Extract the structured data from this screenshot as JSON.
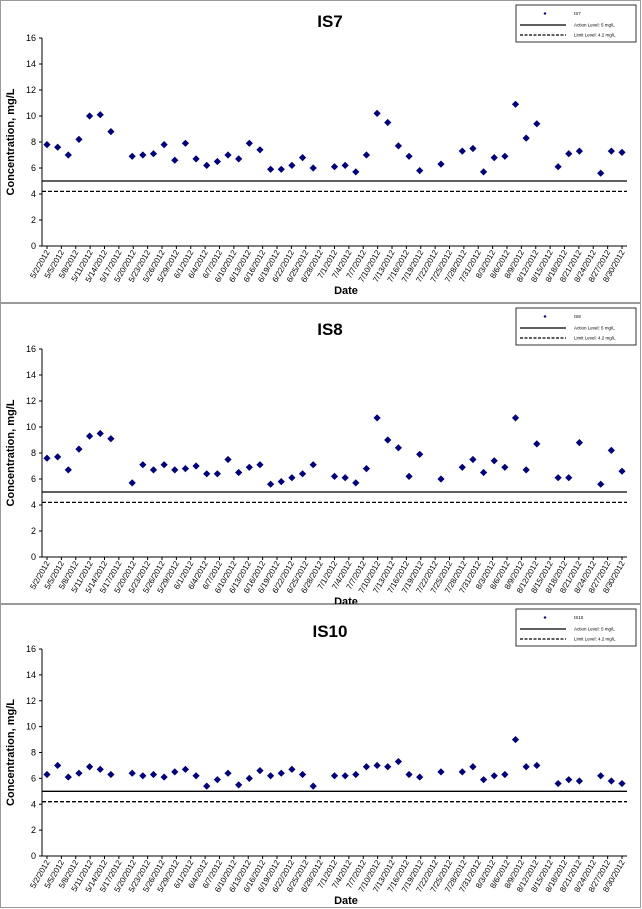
{
  "chart_data": [
    {
      "type": "scatter",
      "title": "IS7",
      "xlabel": "Date",
      "ylabel": "Concentration, mg/L",
      "ylim": [
        0,
        16
      ],
      "yticks": [
        0,
        2,
        4,
        6,
        8,
        10,
        12,
        14,
        16
      ],
      "grid": false,
      "legend_position": "top-right",
      "x_categories": [
        "5/2/2012",
        "5/5/2012",
        "5/8/2012",
        "5/11/2012",
        "5/14/2012",
        "5/17/2012",
        "5/20/2012",
        "5/23/2012",
        "5/26/2012",
        "5/29/2012",
        "6/1/2012",
        "6/4/2012",
        "6/7/2012",
        "6/10/2012",
        "6/13/2012",
        "6/16/2012",
        "6/19/2012",
        "6/22/2012",
        "6/25/2012",
        "6/28/2012",
        "7/1/2012",
        "7/4/2012",
        "7/7/2012",
        "7/10/2012",
        "7/13/2012",
        "7/16/2012",
        "7/19/2012",
        "7/22/2012",
        "7/25/2012",
        "7/28/2012",
        "7/31/2012",
        "8/3/2012",
        "8/6/2012",
        "8/9/2012",
        "8/12/2012",
        "8/15/2012",
        "8/18/2012",
        "8/21/2012",
        "8/24/2012",
        "8/27/2012",
        "8/30/2012"
      ],
      "series": [
        {
          "name": "IS7",
          "values": [
            [
              0,
              7.8
            ],
            [
              1,
              7.6
            ],
            [
              2,
              7.0
            ],
            [
              3,
              8.2
            ],
            [
              4,
              10.0
            ],
            [
              5,
              10.1
            ],
            [
              6,
              8.8
            ],
            [
              8,
              6.9
            ],
            [
              9,
              7.0
            ],
            [
              10,
              7.1
            ],
            [
              11,
              7.8
            ],
            [
              12,
              6.6
            ],
            [
              13,
              7.9
            ],
            [
              14,
              6.7
            ],
            [
              15,
              6.2
            ],
            [
              16,
              6.5
            ],
            [
              17,
              7.0
            ],
            [
              18,
              6.7
            ],
            [
              19,
              7.9
            ],
            [
              20,
              7.4
            ],
            [
              21,
              5.9
            ],
            [
              22,
              5.9
            ],
            [
              23,
              6.2
            ],
            [
              24,
              6.8
            ],
            [
              25,
              6.0
            ],
            [
              27,
              6.1
            ],
            [
              28,
              6.2
            ],
            [
              29,
              5.7
            ],
            [
              30,
              7.0
            ],
            [
              31,
              10.2
            ],
            [
              32,
              9.5
            ],
            [
              33,
              7.7
            ],
            [
              34,
              6.9
            ],
            [
              35,
              5.8
            ],
            [
              37,
              6.3
            ],
            [
              39,
              7.3
            ],
            [
              40,
              7.5
            ],
            [
              41,
              5.7
            ],
            [
              42,
              6.8
            ],
            [
              43,
              6.9
            ],
            [
              44,
              10.9
            ],
            [
              45,
              8.3
            ],
            [
              46,
              9.4
            ],
            [
              48,
              6.1
            ],
            [
              49,
              7.1
            ],
            [
              50,
              7.3
            ],
            [
              52,
              5.6
            ],
            [
              53,
              7.3
            ],
            [
              54,
              7.2
            ]
          ]
        }
      ],
      "reference_lines": [
        {
          "name": "Action Level: 5 mg/L",
          "value": 5.0,
          "style": "solid"
        },
        {
          "name": "Limit Level: 4.2 mg/L",
          "value": 4.2,
          "style": "dashed"
        }
      ]
    },
    {
      "type": "scatter",
      "title": "IS8",
      "xlabel": "Date",
      "ylabel": "Concentration, mg/L",
      "ylim": [
        0,
        16
      ],
      "yticks": [
        0,
        2,
        4,
        6,
        8,
        10,
        12,
        14,
        16
      ],
      "grid": false,
      "legend_position": "top-right",
      "x_categories": [
        "5/2/2012",
        "5/5/2012",
        "5/8/2012",
        "5/11/2012",
        "5/14/2012",
        "5/17/2012",
        "5/20/2012",
        "5/23/2012",
        "5/26/2012",
        "5/29/2012",
        "6/1/2012",
        "6/4/2012",
        "6/7/2012",
        "6/10/2012",
        "6/13/2012",
        "6/16/2012",
        "6/19/2012",
        "6/22/2012",
        "6/25/2012",
        "6/28/2012",
        "7/1/2012",
        "7/4/2012",
        "7/7/2012",
        "7/10/2012",
        "7/13/2012",
        "7/16/2012",
        "7/19/2012",
        "7/22/2012",
        "7/25/2012",
        "7/28/2012",
        "7/31/2012",
        "8/3/2012",
        "8/6/2012",
        "8/9/2012",
        "8/12/2012",
        "8/15/2012",
        "8/18/2012",
        "8/21/2012",
        "8/24/2012",
        "8/27/2012",
        "8/30/2012"
      ],
      "series": [
        {
          "name": "IS8",
          "values": [
            [
              0,
              7.6
            ],
            [
              1,
              7.7
            ],
            [
              2,
              6.7
            ],
            [
              3,
              8.3
            ],
            [
              4,
              9.3
            ],
            [
              5,
              9.5
            ],
            [
              6,
              9.1
            ],
            [
              8,
              5.7
            ],
            [
              9,
              7.1
            ],
            [
              10,
              6.7
            ],
            [
              11,
              7.1
            ],
            [
              12,
              6.7
            ],
            [
              13,
              6.8
            ],
            [
              14,
              7.0
            ],
            [
              15,
              6.4
            ],
            [
              16,
              6.4
            ],
            [
              17,
              7.5
            ],
            [
              18,
              6.5
            ],
            [
              19,
              6.9
            ],
            [
              20,
              7.1
            ],
            [
              21,
              5.6
            ],
            [
              22,
              5.8
            ],
            [
              23,
              6.1
            ],
            [
              24,
              6.4
            ],
            [
              25,
              7.1
            ],
            [
              27,
              6.2
            ],
            [
              28,
              6.1
            ],
            [
              29,
              5.7
            ],
            [
              30,
              6.8
            ],
            [
              31,
              10.7
            ],
            [
              32,
              9.0
            ],
            [
              33,
              8.4
            ],
            [
              34,
              6.2
            ],
            [
              35,
              7.9
            ],
            [
              37,
              6.0
            ],
            [
              39,
              6.9
            ],
            [
              40,
              7.5
            ],
            [
              41,
              6.5
            ],
            [
              42,
              7.4
            ],
            [
              43,
              6.9
            ],
            [
              44,
              10.7
            ],
            [
              45,
              6.7
            ],
            [
              46,
              8.7
            ],
            [
              48,
              6.1
            ],
            [
              49,
              6.1
            ],
            [
              50,
              8.8
            ],
            [
              52,
              5.6
            ],
            [
              53,
              8.2
            ],
            [
              54,
              6.6
            ]
          ]
        }
      ],
      "reference_lines": [
        {
          "name": "Action Level: 5 mg/L",
          "value": 5.0,
          "style": "solid"
        },
        {
          "name": "Limit Level: 4.2 mg/L",
          "value": 4.2,
          "style": "dashed"
        }
      ]
    },
    {
      "type": "scatter",
      "title": "IS10",
      "xlabel": "Date",
      "ylabel": "Concentration, mg/L",
      "ylim": [
        0,
        16
      ],
      "yticks": [
        0,
        2,
        4,
        6,
        8,
        10,
        12,
        14,
        16
      ],
      "grid": false,
      "legend_position": "top-right",
      "x_categories": [
        "5/2/2012",
        "5/5/2012",
        "5/8/2012",
        "5/11/2012",
        "5/14/2012",
        "5/17/2012",
        "5/20/2012",
        "5/23/2012",
        "5/26/2012",
        "5/29/2012",
        "6/1/2012",
        "6/4/2012",
        "6/7/2012",
        "6/10/2012",
        "6/13/2012",
        "6/16/2012",
        "6/19/2012",
        "6/22/2012",
        "6/25/2012",
        "6/28/2012",
        "7/1/2012",
        "7/4/2012",
        "7/7/2012",
        "7/10/2012",
        "7/13/2012",
        "7/16/2012",
        "7/19/2012",
        "7/22/2012",
        "7/25/2012",
        "7/28/2012",
        "7/31/2012",
        "8/3/2012",
        "8/6/2012",
        "8/9/2012",
        "8/12/2012",
        "8/15/2012",
        "8/18/2012",
        "8/21/2012",
        "8/24/2012",
        "8/27/2012",
        "8/30/2012"
      ],
      "series": [
        {
          "name": "IS10",
          "values": [
            [
              0,
              6.3
            ],
            [
              1,
              7.0
            ],
            [
              2,
              6.1
            ],
            [
              3,
              6.4
            ],
            [
              4,
              6.9
            ],
            [
              5,
              6.7
            ],
            [
              6,
              6.3
            ],
            [
              8,
              6.4
            ],
            [
              9,
              6.2
            ],
            [
              10,
              6.3
            ],
            [
              11,
              6.1
            ],
            [
              12,
              6.5
            ],
            [
              13,
              6.7
            ],
            [
              14,
              6.2
            ],
            [
              15,
              5.4
            ],
            [
              16,
              5.9
            ],
            [
              17,
              6.4
            ],
            [
              18,
              5.5
            ],
            [
              19,
              6.0
            ],
            [
              20,
              6.6
            ],
            [
              21,
              6.2
            ],
            [
              22,
              6.4
            ],
            [
              23,
              6.7
            ],
            [
              24,
              6.3
            ],
            [
              25,
              5.4
            ],
            [
              27,
              6.2
            ],
            [
              28,
              6.2
            ],
            [
              29,
              6.3
            ],
            [
              30,
              6.9
            ],
            [
              31,
              7.0
            ],
            [
              32,
              6.9
            ],
            [
              33,
              7.3
            ],
            [
              34,
              6.3
            ],
            [
              35,
              6.1
            ],
            [
              37,
              6.5
            ],
            [
              39,
              6.5
            ],
            [
              40,
              6.9
            ],
            [
              41,
              5.9
            ],
            [
              42,
              6.2
            ],
            [
              43,
              6.3
            ],
            [
              44,
              9.0
            ],
            [
              45,
              6.9
            ],
            [
              46,
              7.0
            ],
            [
              48,
              5.6
            ],
            [
              49,
              5.9
            ],
            [
              50,
              5.8
            ],
            [
              52,
              6.2
            ],
            [
              53,
              5.8
            ],
            [
              54,
              5.6
            ]
          ]
        }
      ],
      "reference_lines": [
        {
          "name": "Action Level: 5 mg/L",
          "value": 5.0,
          "style": "solid"
        },
        {
          "name": "Limit Level: 4.2 mg/L",
          "value": 4.2,
          "style": "dashed"
        }
      ]
    }
  ],
  "colors": {
    "marker": "#000080",
    "reference_line": "#000000",
    "panel_border": "#9a9a9a",
    "background": "#ffffff"
  }
}
